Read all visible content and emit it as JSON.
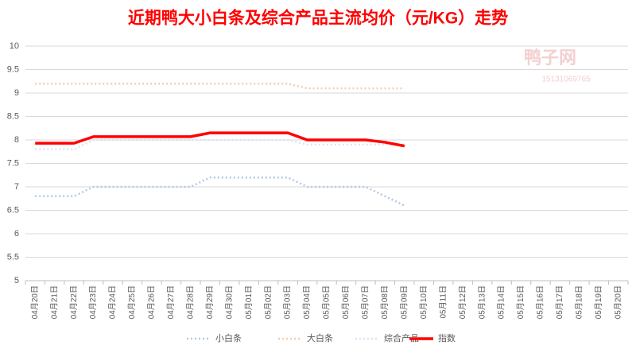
{
  "chart_data": {
    "type": "line",
    "title": "近期鸭大小白条及综合产品主流均价（元/KG）走势",
    "watermark": [
      "鸭子网",
      "15131069765"
    ],
    "categories": [
      "04月20日",
      "04月21日",
      "04月22日",
      "04月23日",
      "04月24日",
      "04月25日",
      "04月26日",
      "04月27日",
      "04月28日",
      "04月29日",
      "04月30日",
      "05月01日",
      "05月02日",
      "05月03日",
      "05月04日",
      "05月05日",
      "05月06日",
      "05月07日",
      "05月08日",
      "05月09日",
      "05月10日",
      "05月11日",
      "05月12日",
      "05月13日",
      "05月14日",
      "05月15日",
      "05月16日",
      "05月17日",
      "05月18日",
      "05月19日",
      "05月20日"
    ],
    "series": [
      {
        "name": "小白条",
        "color": "#b4c7e7",
        "dash": true,
        "values": [
          6.8,
          6.8,
          6.8,
          7.0,
          7.0,
          7.0,
          7.0,
          7.0,
          7.0,
          7.2,
          7.2,
          7.2,
          7.2,
          7.2,
          7.0,
          7.0,
          7.0,
          7.0,
          6.8,
          6.6,
          null,
          null,
          null,
          null,
          null,
          null,
          null,
          null,
          null,
          null,
          null
        ]
      },
      {
        "name": "大白条",
        "color": "#f8cbad",
        "dash": true,
        "values": [
          9.2,
          9.2,
          9.2,
          9.2,
          9.2,
          9.2,
          9.2,
          9.2,
          9.2,
          9.2,
          9.2,
          9.2,
          9.2,
          9.2,
          9.1,
          9.1,
          9.1,
          9.1,
          9.1,
          9.1,
          null,
          null,
          null,
          null,
          null,
          null,
          null,
          null,
          null,
          null,
          null
        ]
      },
      {
        "name": "综合产品",
        "color": "#dae3f3",
        "dash": true,
        "values": [
          7.8,
          7.8,
          7.8,
          8.0,
          8.0,
          8.0,
          8.0,
          8.0,
          8.0,
          8.0,
          8.0,
          8.0,
          8.0,
          8.0,
          7.9,
          7.9,
          7.9,
          7.9,
          7.9,
          7.9,
          null,
          null,
          null,
          null,
          null,
          null,
          null,
          null,
          null,
          null,
          null
        ]
      },
      {
        "name": "指数",
        "color": "#ff0000",
        "dash": false,
        "values": [
          7.93,
          7.93,
          7.93,
          8.07,
          8.07,
          8.07,
          8.07,
          8.07,
          8.07,
          8.15,
          8.15,
          8.15,
          8.15,
          8.15,
          8.0,
          8.0,
          8.0,
          8.0,
          7.95,
          7.87,
          null,
          null,
          null,
          null,
          null,
          null,
          null,
          null,
          null,
          null,
          null
        ]
      }
    ],
    "ylim": [
      5,
      10
    ],
    "yticks": [
      5,
      5.5,
      6,
      6.5,
      7,
      7.5,
      8,
      8.5,
      9,
      9.5,
      10
    ],
    "grid": true,
    "legend": "bottom"
  }
}
